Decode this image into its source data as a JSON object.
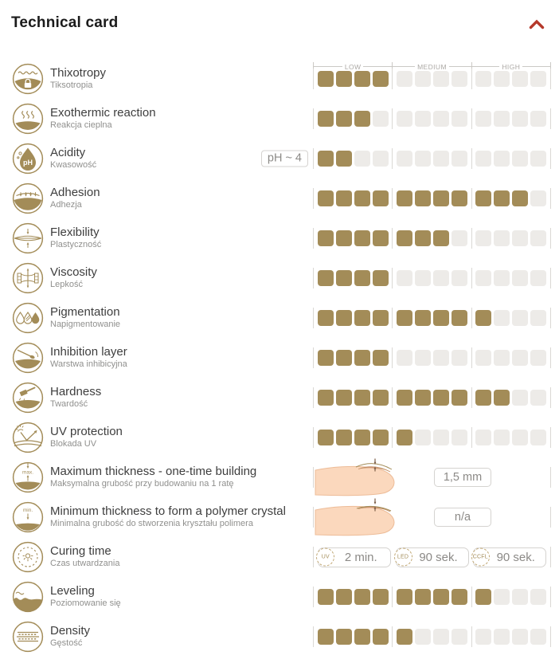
{
  "header": {
    "title": "Technical card"
  },
  "scale": {
    "labels": [
      "LOW",
      "MEDIUM",
      "HIGH"
    ],
    "squares_per_segment": 4,
    "max_squares": 12
  },
  "colors": {
    "accent_gold": "#a38c58",
    "square_empty": "#edebe8",
    "chevron_red": "#b5392b",
    "skin": "#fbd8bd",
    "skin_outline": "#edbc98",
    "nail_pink": "#e79c92",
    "arrow_brown": "#7a5c46"
  },
  "rows": [
    {
      "id": "thixotropy",
      "type": "rating",
      "label": "Thixotropy",
      "sublabel": "Tiksotropia",
      "value": 4,
      "max": 12
    },
    {
      "id": "exothermic-reaction",
      "type": "rating",
      "label": "Exothermic reaction",
      "sublabel": "Reakcja cieplna",
      "value": 3,
      "max": 12
    },
    {
      "id": "acidity",
      "type": "rating",
      "label": "Acidity",
      "sublabel": "Kwasowość",
      "value": 2,
      "max": 12,
      "badge": "pH ~ 4",
      "icon_text": "pH"
    },
    {
      "id": "adhesion",
      "type": "rating",
      "label": "Adhesion",
      "sublabel": "Adhezja",
      "value": 11,
      "max": 12
    },
    {
      "id": "flexibility",
      "type": "rating",
      "label": "Flexibility",
      "sublabel": "Plastyczność",
      "value": 7,
      "max": 12
    },
    {
      "id": "viscosity",
      "type": "rating",
      "label": "Viscosity",
      "sublabel": "Lepkość",
      "value": 4,
      "max": 12
    },
    {
      "id": "pigmentation",
      "type": "rating",
      "label": "Pigmentation",
      "sublabel": "Napigmentowanie",
      "value": 9,
      "max": 12
    },
    {
      "id": "inhibition-layer",
      "type": "rating",
      "label": "Inhibition layer",
      "sublabel": "Warstwa inhibicyjna",
      "value": 4,
      "max": 12
    },
    {
      "id": "hardness",
      "type": "rating",
      "label": "Hardness",
      "sublabel": "Twardość",
      "value": 10,
      "max": 12
    },
    {
      "id": "uv-protection",
      "type": "rating",
      "label": "UV protection",
      "sublabel": "Blokada UV",
      "value": 5,
      "max": 12
    },
    {
      "id": "maximum-thickness",
      "type": "measure",
      "label": "Maximum thickness - one-time building",
      "sublabel": "Maksymalna grubość przy budowaniu na 1 ratę",
      "value": "1,5 mm",
      "variant": "max",
      "icon_text": "max."
    },
    {
      "id": "minimum-thickness",
      "type": "measure",
      "label": "Minimum thickness to form a polymer crystal",
      "sublabel": "Minimalna grubość do stworzenia kryształu polimera",
      "value": "n/a",
      "variant": "min",
      "icon_text": "min."
    },
    {
      "id": "curing-time",
      "type": "times",
      "label": "Curing time",
      "sublabel": "Czas utwardzania",
      "times": [
        {
          "lamp": "UV",
          "value": "2 min."
        },
        {
          "lamp": "LED",
          "value": "90 sek."
        },
        {
          "lamp": "CCFL",
          "value": "90 sek."
        }
      ]
    },
    {
      "id": "leveling",
      "type": "rating",
      "label": "Leveling",
      "sublabel": "Poziomowanie się",
      "value": 9,
      "max": 12
    },
    {
      "id": "density",
      "type": "rating",
      "label": "Density",
      "sublabel": "Gęstość",
      "value": 5,
      "max": 12
    }
  ]
}
